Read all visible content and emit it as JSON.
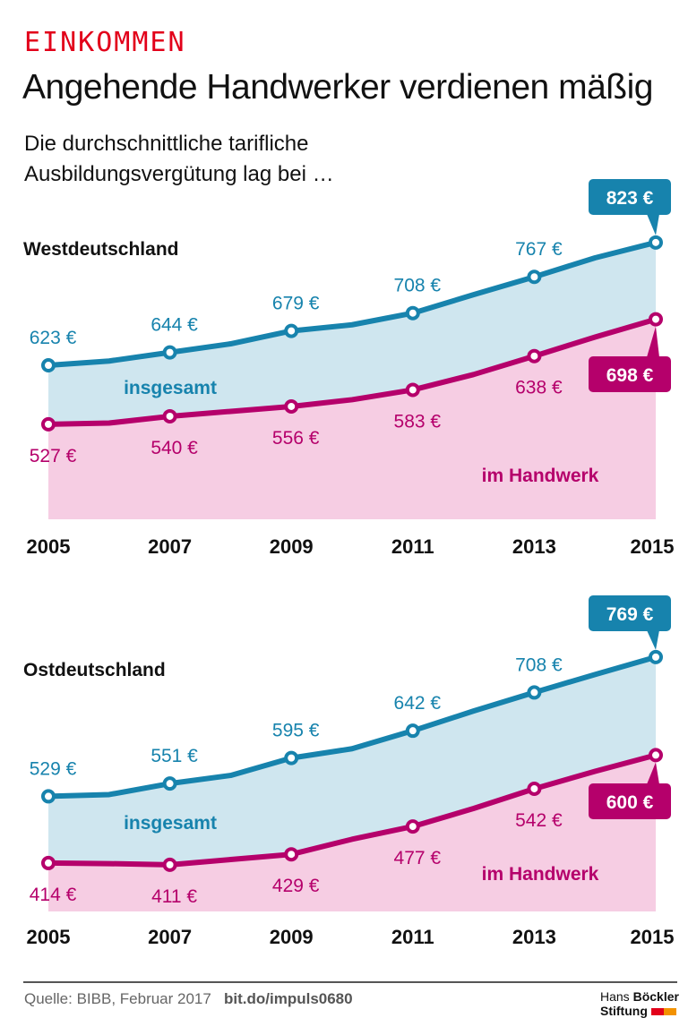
{
  "header": {
    "kicker": "EINKOMMEN",
    "title": "Angehende Handwerker verdienen mäßig",
    "subtitle_line1": "Die durchschnittliche tarifliche",
    "subtitle_line2": "Ausbildungsvergütung lag bei …"
  },
  "colors": {
    "insgesamt": "#1783ad",
    "handwerk": "#b5006b",
    "insgesamt_fill": "#cfe6ef",
    "handwerk_fill": "#f6cde3",
    "kicker": "#e2001a"
  },
  "chart_data": [
    {
      "type": "area",
      "title": "Westdeutschland",
      "x": [
        2005,
        2006,
        2007,
        2008,
        2009,
        2010,
        2011,
        2012,
        2013,
        2014,
        2015
      ],
      "xticks": [
        "2005",
        "2007",
        "2009",
        "2011",
        "2013",
        "2015"
      ],
      "series": [
        {
          "name": "insgesamt",
          "values": [
            623,
            630,
            644,
            658,
            679,
            689,
            708,
            738,
            767,
            798,
            823
          ],
          "labels": {
            "2005": "623 €",
            "2007": "644 €",
            "2009": "679 €",
            "2011": "708 €",
            "2013": "767 €",
            "2015": "823 €"
          }
        },
        {
          "name": "im Handwerk",
          "values": [
            527,
            529,
            540,
            548,
            556,
            567,
            583,
            608,
            638,
            669,
            698
          ],
          "labels": {
            "2005": "527 €",
            "2007": "540 €",
            "2009": "556 €",
            "2011": "583 €",
            "2013": "638 €",
            "2015": "698 €"
          }
        }
      ]
    },
    {
      "type": "area",
      "title": "Ostdeutschland",
      "x": [
        2005,
        2006,
        2007,
        2008,
        2009,
        2010,
        2011,
        2012,
        2013,
        2014,
        2015
      ],
      "xticks": [
        "2005",
        "2007",
        "2009",
        "2011",
        "2013",
        "2015"
      ],
      "series": [
        {
          "name": "insgesamt",
          "values": [
            529,
            532,
            551,
            565,
            595,
            611,
            642,
            676,
            708,
            739,
            769
          ],
          "labels": {
            "2005": "529 €",
            "2007": "551 €",
            "2009": "595 €",
            "2011": "642 €",
            "2013": "708 €",
            "2015": "769 €"
          }
        },
        {
          "name": "im Handwerk",
          "values": [
            414,
            413,
            411,
            420,
            429,
            455,
            477,
            508,
            542,
            572,
            600
          ],
          "labels": {
            "2005": "414 €",
            "2007": "411 €",
            "2009": "429 €",
            "2011": "477 €",
            "2013": "542 €",
            "2015": "600 €"
          }
        }
      ]
    }
  ],
  "footer": {
    "source": "Quelle: BIBB, Februar 2017",
    "link": "bit.do/impuls0680",
    "logo_line1_a": "Hans",
    "logo_line1_b": "Böckler",
    "logo_line2": "Stiftung"
  }
}
